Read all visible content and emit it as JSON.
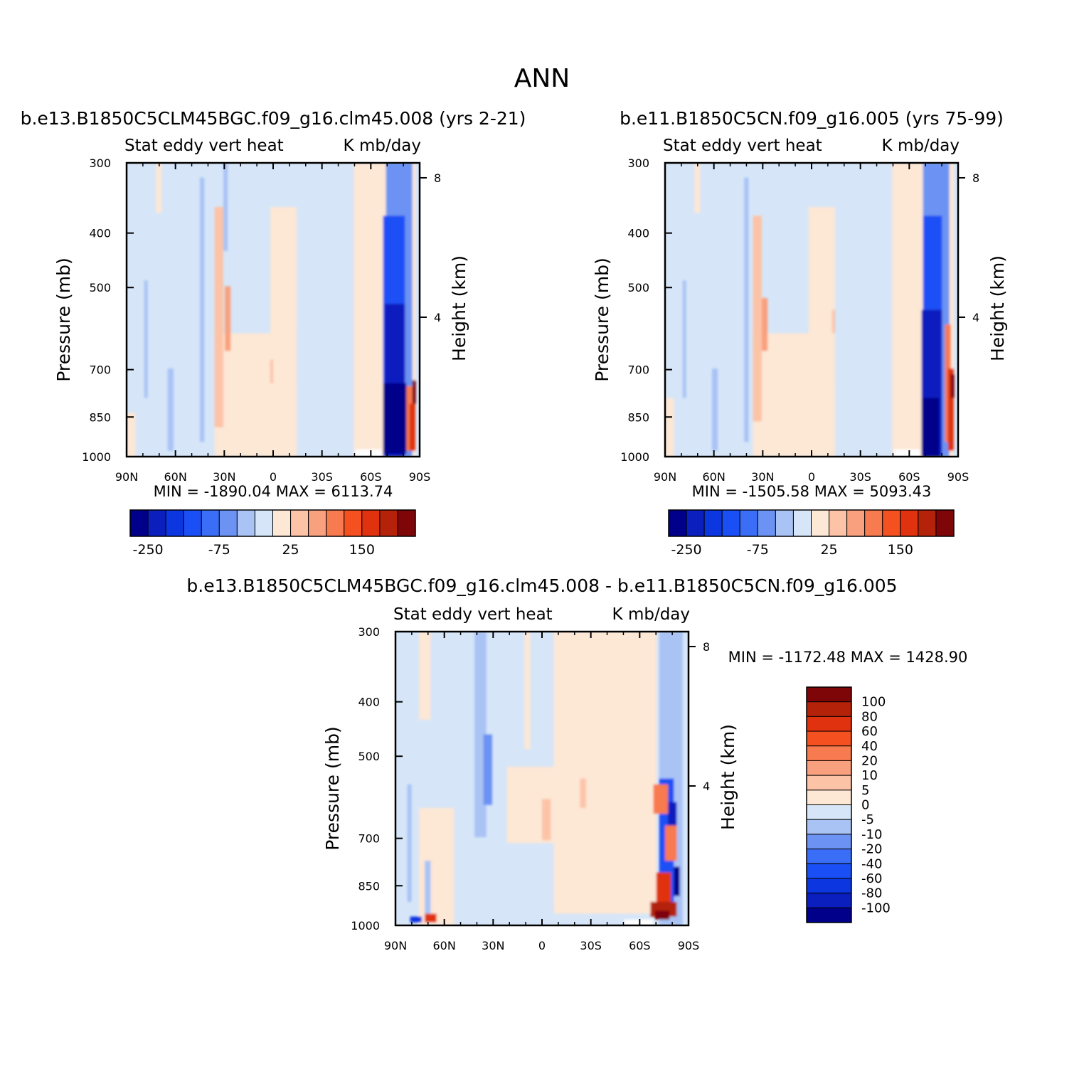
{
  "page": {
    "title": "ANN"
  },
  "colors": {
    "negative": [
      "#00008b",
      "#0a1fbe",
      "#0b36e0",
      "#1a4ff5",
      "#3b6ef7",
      "#6c93f3",
      "#a9c3f5",
      "#d6e6f8"
    ],
    "positive": [
      "#fde7d5",
      "#fcc3a7",
      "#f9a07e",
      "#f87a4f",
      "#f5501f",
      "#e0320f",
      "#b4220a",
      "#7e0608"
    ],
    "background_negative": "#d6e6f8",
    "background_positive": "#fde7d5",
    "frame": "#000000"
  },
  "chart_data": [
    {
      "type": "heatmap",
      "panel": "case1",
      "title": "b.e13.B1850C5CLM45BGC.f09_g16.clm45.008 (yrs 2-21)",
      "left_label": "Stat eddy vert heat",
      "right_label": "K mb/day",
      "xlabel": "",
      "ylabel": "Pressure (mb)",
      "y2label": "Height (km)",
      "x_ticks": [
        "90N",
        "60N",
        "30N",
        "0",
        "30S",
        "60S",
        "90S"
      ],
      "y_ticks": [
        "300",
        "400",
        "500",
        "700",
        "850",
        "1000"
      ],
      "y_range": [
        1000,
        300
      ],
      "y_scale": "log",
      "y2_ticks": [
        "8",
        "4"
      ],
      "min_label": "MIN = -1890.04",
      "max_label": "MAX = 6113.74",
      "min": -1890.04,
      "max": 6113.74,
      "colorbar_levels": [
        "-250",
        "-75",
        "25",
        "150"
      ],
      "colorbar_orientation": "horizontal"
    },
    {
      "type": "heatmap",
      "panel": "case2",
      "title": "b.e11.B1850C5CN.f09_g16.005 (yrs 75-99)",
      "left_label": "Stat eddy vert heat",
      "right_label": "K mb/day",
      "xlabel": "",
      "ylabel": "Pressure (mb)",
      "y2label": "Height (km)",
      "x_ticks": [
        "90N",
        "60N",
        "30N",
        "0",
        "30S",
        "60S",
        "90S"
      ],
      "y_ticks": [
        "300",
        "400",
        "500",
        "700",
        "850",
        "1000"
      ],
      "y_range": [
        1000,
        300
      ],
      "y_scale": "log",
      "y2_ticks": [
        "8",
        "4"
      ],
      "min_label": "MIN = -1505.58",
      "max_label": "MAX = 5093.43",
      "min": -1505.58,
      "max": 5093.43,
      "colorbar_levels": [
        "-250",
        "-75",
        "25",
        "150"
      ],
      "colorbar_orientation": "horizontal"
    },
    {
      "type": "heatmap",
      "panel": "difference",
      "title": "b.e13.B1850C5CLM45BGC.f09_g16.clm45.008 - b.e11.B1850C5CN.f09_g16.005",
      "left_label": "Stat eddy vert heat",
      "right_label": "K mb/day",
      "xlabel": "",
      "ylabel": "Pressure (mb)",
      "y2label": "Height (km)",
      "x_ticks": [
        "90N",
        "60N",
        "30N",
        "0",
        "30S",
        "60S",
        "90S"
      ],
      "y_ticks": [
        "300",
        "400",
        "500",
        "700",
        "850",
        "1000"
      ],
      "y_range": [
        1000,
        300
      ],
      "y_scale": "log",
      "y2_ticks": [
        "8",
        "4"
      ],
      "min_label": "MIN = -1172.48",
      "max_label": "MAX = 1428.90",
      "min": -1172.48,
      "max": 1428.9,
      "colorbar_levels": [
        "100",
        "80",
        "60",
        "40",
        "20",
        "10",
        "5",
        "0",
        "-5",
        "-10",
        "-20",
        "-40",
        "-60",
        "-80",
        "-100"
      ],
      "colorbar_orientation": "vertical"
    }
  ]
}
